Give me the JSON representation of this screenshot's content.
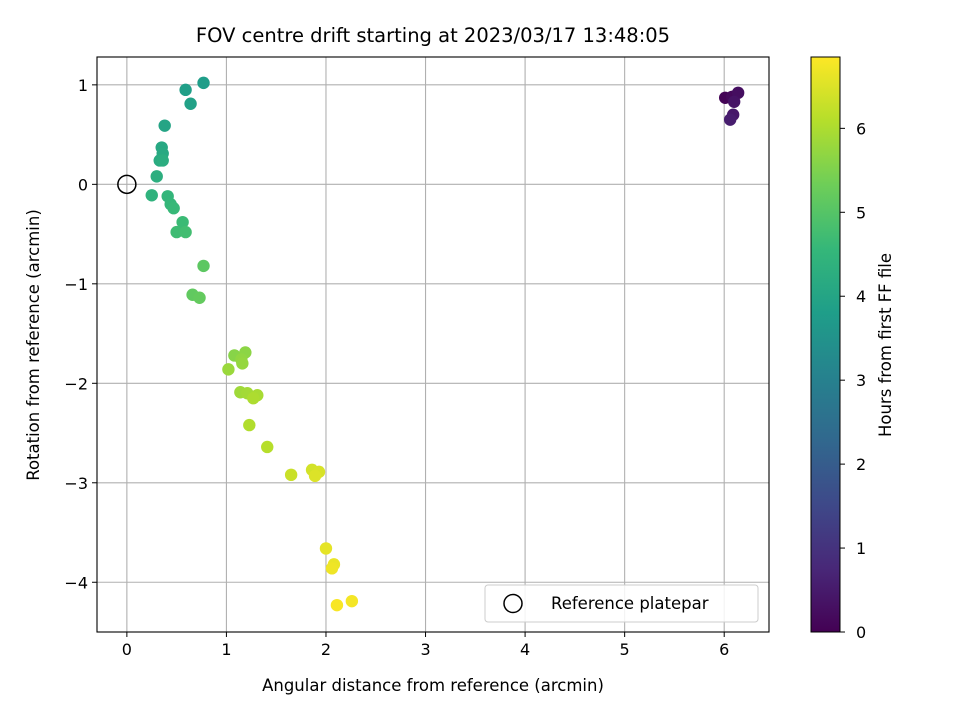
{
  "chart_data": {
    "type": "scatter",
    "title": "FOV centre drift starting at 2023/03/17 13:48:05",
    "xlabel": "Angular distance from reference (arcmin)",
    "ylabel": "Rotation from reference (arcmin)",
    "xlim": [
      -0.3,
      6.45
    ],
    "ylim": [
      -4.5,
      1.28
    ],
    "xticks": [
      0,
      1,
      2,
      3,
      4,
      5,
      6
    ],
    "yticks": [
      -4,
      -3,
      -2,
      -1,
      0,
      1
    ],
    "xtick_labels": [
      "0",
      "1",
      "2",
      "3",
      "4",
      "5",
      "6"
    ],
    "ytick_labels": [
      "−4",
      "−3",
      "−2",
      "−1",
      "0",
      "1"
    ],
    "grid": true,
    "legend": {
      "position": "lower-right",
      "entries": [
        {
          "label": "Reference platepar",
          "marker": "open-circle"
        }
      ]
    },
    "reference_point": {
      "x": 0,
      "y": 0
    },
    "colorbar": {
      "label": "Hours from first FF file",
      "colormap": "viridis",
      "range": [
        0,
        6.85
      ],
      "ticks": [
        0,
        1,
        2,
        3,
        4,
        5,
        6
      ],
      "tick_labels": [
        "0",
        "1",
        "2",
        "3",
        "4",
        "5",
        "6"
      ],
      "stops": [
        "#440154",
        "#482878",
        "#3e4989",
        "#31688e",
        "#26828e",
        "#1f9e89",
        "#35b779",
        "#6ece58",
        "#b5de2b",
        "#fde725"
      ]
    },
    "points": [
      {
        "x": 6.01,
        "y": 0.87,
        "t": 0.05
      },
      {
        "x": 6.08,
        "y": 0.88,
        "t": 0.15
      },
      {
        "x": 6.14,
        "y": 0.92,
        "t": 0.25
      },
      {
        "x": 6.1,
        "y": 0.83,
        "t": 0.35
      },
      {
        "x": 6.09,
        "y": 0.7,
        "t": 0.45
      },
      {
        "x": 6.06,
        "y": 0.65,
        "t": 0.55
      },
      {
        "x": 0.77,
        "y": 1.02,
        "t": 3.8
      },
      {
        "x": 0.59,
        "y": 0.95,
        "t": 3.85
      },
      {
        "x": 0.64,
        "y": 0.81,
        "t": 3.9
      },
      {
        "x": 0.38,
        "y": 0.59,
        "t": 4.0
      },
      {
        "x": 0.35,
        "y": 0.37,
        "t": 4.1
      },
      {
        "x": 0.36,
        "y": 0.31,
        "t": 4.15
      },
      {
        "x": 0.33,
        "y": 0.24,
        "t": 4.2
      },
      {
        "x": 0.36,
        "y": 0.24,
        "t": 4.25
      },
      {
        "x": 0.3,
        "y": 0.08,
        "t": 4.3
      },
      {
        "x": 0.25,
        "y": -0.11,
        "t": 4.4
      },
      {
        "x": 0.41,
        "y": -0.12,
        "t": 4.5
      },
      {
        "x": 0.44,
        "y": -0.2,
        "t": 4.55
      },
      {
        "x": 0.47,
        "y": -0.24,
        "t": 4.6
      },
      {
        "x": 0.56,
        "y": -0.38,
        "t": 4.65
      },
      {
        "x": 0.5,
        "y": -0.48,
        "t": 4.7
      },
      {
        "x": 0.59,
        "y": -0.48,
        "t": 4.75
      },
      {
        "x": 0.77,
        "y": -0.82,
        "t": 5.1
      },
      {
        "x": 0.66,
        "y": -1.11,
        "t": 5.15
      },
      {
        "x": 0.73,
        "y": -1.14,
        "t": 5.2
      },
      {
        "x": 1.08,
        "y": -1.72,
        "t": 5.6
      },
      {
        "x": 1.19,
        "y": -1.69,
        "t": 5.65
      },
      {
        "x": 1.15,
        "y": -1.76,
        "t": 5.7
      },
      {
        "x": 1.16,
        "y": -1.8,
        "t": 5.75
      },
      {
        "x": 1.02,
        "y": -1.86,
        "t": 5.8
      },
      {
        "x": 1.14,
        "y": -2.09,
        "t": 5.85
      },
      {
        "x": 1.21,
        "y": -2.1,
        "t": 5.9
      },
      {
        "x": 1.31,
        "y": -2.12,
        "t": 5.95
      },
      {
        "x": 1.27,
        "y": -2.15,
        "t": 6.0
      },
      {
        "x": 1.23,
        "y": -2.42,
        "t": 6.05
      },
      {
        "x": 1.41,
        "y": -2.64,
        "t": 6.1
      },
      {
        "x": 1.65,
        "y": -2.92,
        "t": 6.3
      },
      {
        "x": 1.86,
        "y": -2.87,
        "t": 6.4
      },
      {
        "x": 1.93,
        "y": -2.89,
        "t": 6.45
      },
      {
        "x": 1.89,
        "y": -2.93,
        "t": 6.5
      },
      {
        "x": 2.0,
        "y": -3.66,
        "t": 6.6
      },
      {
        "x": 2.08,
        "y": -3.82,
        "t": 6.65
      },
      {
        "x": 2.06,
        "y": -3.86,
        "t": 6.7
      },
      {
        "x": 2.26,
        "y": -4.19,
        "t": 6.75
      },
      {
        "x": 2.11,
        "y": -4.23,
        "t": 6.8
      }
    ]
  }
}
